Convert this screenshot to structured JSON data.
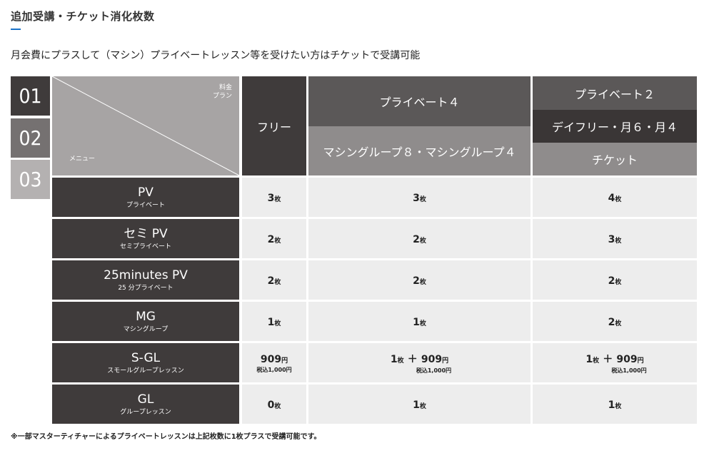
{
  "heading": "追加受講・チケット消化枚数",
  "intro": "月会費にプラスして（マシン）プライベートレッスン等を受けたい方はチケットで受講可能",
  "footnote": "※一部マスターティチャーによるプライベートレッスンは上記枚数に1枚プラスで受講可能です。",
  "step_numbers": [
    "01",
    "02",
    "03"
  ],
  "corner": {
    "plan_line1": "料金",
    "plan_line2": "プラン",
    "menu": "メニュー"
  },
  "columns": {
    "free": "フリー",
    "pv4": "プライベート４",
    "mg": "マシングループ８・マシングループ４",
    "pv2": "プライベート２",
    "day": "デイフリー・月６・月４",
    "ticket": "チケット"
  },
  "unit": "枚",
  "rows": [
    {
      "name": "PV",
      "sub": "プライベート",
      "free": {
        "v": "3"
      },
      "pv4": {
        "v": "3"
      },
      "pv2": {
        "v": "4"
      }
    },
    {
      "name": "セミ PV",
      "sub": "セミプライベート",
      "free": {
        "v": "2"
      },
      "pv4": {
        "v": "2"
      },
      "pv2": {
        "v": "3"
      }
    },
    {
      "name": "25minutes PV",
      "sub": "25 分プライベート",
      "free": {
        "v": "2"
      },
      "pv4": {
        "v": "2"
      },
      "pv2": {
        "v": "2"
      }
    },
    {
      "name": "MG",
      "sub": "マシングループ",
      "free": {
        "v": "1"
      },
      "pv4": {
        "v": "1"
      },
      "pv2": {
        "v": "2"
      }
    },
    {
      "name": "S-GL",
      "sub": "スモールグループレッスン",
      "free": {
        "v": "909",
        "u": "円",
        "tax": "税込1,000円"
      },
      "pv4": {
        "v": "1",
        "plus": "＋",
        "yen": "909",
        "yu": "円",
        "tax": "税込1,000円"
      },
      "pv2": {
        "v": "1",
        "plus": "＋",
        "yen": "909",
        "yu": "円",
        "tax": "税込1,000円"
      }
    },
    {
      "name": "GL",
      "sub": "グループレッスン",
      "free": {
        "v": "0"
      },
      "pv4": {
        "v": "1"
      },
      "pv2": {
        "v": "1"
      }
    }
  ]
}
